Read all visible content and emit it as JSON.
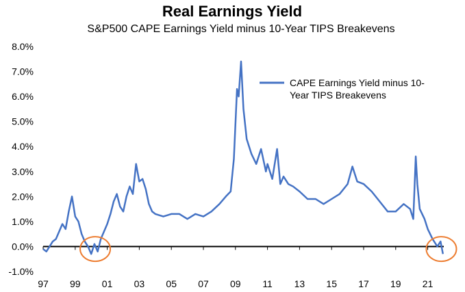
{
  "chart_data": {
    "type": "line",
    "title": "Real Earnings Yield",
    "subtitle": "S&P500 CAPE Earnings Yield minus 10-Year TIPS Breakevens",
    "xlabel": "",
    "ylabel": "",
    "xlim": [
      1997.0,
      2022.0
    ],
    "ylim": [
      -1.0,
      8.0
    ],
    "x_tick_labels": [
      "97",
      "99",
      "01",
      "03",
      "05",
      "07",
      "09",
      "11",
      "13",
      "15",
      "17",
      "19",
      "21"
    ],
    "x_tick_values": [
      1997,
      1999,
      2001,
      2003,
      2005,
      2007,
      2009,
      2011,
      2013,
      2015,
      2017,
      2019,
      2021
    ],
    "y_tick_labels": [
      "-1.0%",
      "0.0%",
      "1.0%",
      "2.0%",
      "3.0%",
      "4.0%",
      "5.0%",
      "6.0%",
      "7.0%",
      "8.0%"
    ],
    "y_tick_values": [
      -1,
      0,
      1,
      2,
      3,
      4,
      5,
      6,
      7,
      8
    ],
    "grid": false,
    "zero_line": true,
    "legend_position": "top-right",
    "series": [
      {
        "name": "CAPE Earnings Yield minus 10-Year TIPS Breakevens",
        "color": "#4472C4",
        "x": [
          1997.0,
          1997.2,
          1997.4,
          1997.6,
          1997.8,
          1998.0,
          1998.2,
          1998.4,
          1998.6,
          1998.8,
          1999.0,
          1999.2,
          1999.4,
          1999.6,
          1999.8,
          2000.0,
          2000.2,
          2000.4,
          2000.6,
          2000.8,
          2001.0,
          2001.2,
          2001.4,
          2001.6,
          2001.8,
          2002.0,
          2002.2,
          2002.4,
          2002.6,
          2002.8,
          2003.0,
          2003.2,
          2003.4,
          2003.6,
          2003.8,
          2004.0,
          2004.5,
          2005.0,
          2005.5,
          2006.0,
          2006.5,
          2007.0,
          2007.5,
          2008.0,
          2008.4,
          2008.7,
          2008.9,
          2009.1,
          2009.2,
          2009.35,
          2009.5,
          2009.7,
          2010.0,
          2010.3,
          2010.6,
          2010.9,
          2011.0,
          2011.3,
          2011.6,
          2011.8,
          2012.0,
          2012.3,
          2012.6,
          2013.0,
          2013.5,
          2014.0,
          2014.5,
          2015.0,
          2015.5,
          2016.0,
          2016.3,
          2016.6,
          2017.0,
          2017.5,
          2018.0,
          2018.5,
          2019.0,
          2019.5,
          2019.9,
          2020.1,
          2020.25,
          2020.35,
          2020.5,
          2020.8,
          2021.0,
          2021.3,
          2021.6,
          2021.8,
          2021.95
        ],
        "values": [
          -0.1,
          -0.2,
          0.0,
          0.2,
          0.3,
          0.6,
          0.9,
          0.7,
          1.4,
          2.0,
          1.2,
          1.0,
          0.5,
          0.2,
          0.0,
          -0.3,
          0.1,
          -0.2,
          0.3,
          0.6,
          0.9,
          1.3,
          1.8,
          2.1,
          1.6,
          1.4,
          2.0,
          2.4,
          2.1,
          3.3,
          2.6,
          2.7,
          2.3,
          1.7,
          1.4,
          1.3,
          1.2,
          1.3,
          1.3,
          1.1,
          1.3,
          1.2,
          1.4,
          1.7,
          2.0,
          2.2,
          3.5,
          6.3,
          6.0,
          7.4,
          5.5,
          4.3,
          3.7,
          3.3,
          3.9,
          3.0,
          3.3,
          2.7,
          3.9,
          2.5,
          2.8,
          2.5,
          2.4,
          2.2,
          1.9,
          1.9,
          1.7,
          1.9,
          2.1,
          2.5,
          3.2,
          2.6,
          2.5,
          2.2,
          1.8,
          1.4,
          1.4,
          1.7,
          1.5,
          1.1,
          3.6,
          2.5,
          1.5,
          1.1,
          0.7,
          0.3,
          0.0,
          0.2,
          -0.3
        ]
      }
    ]
  },
  "annotations": [
    {
      "kind": "circle",
      "color": "#ED7D31",
      "at_year": 2000.25,
      "at_value": -0.1
    },
    {
      "kind": "circle",
      "color": "#ED7D31",
      "at_year": 2021.85,
      "at_value": -0.1
    }
  ]
}
